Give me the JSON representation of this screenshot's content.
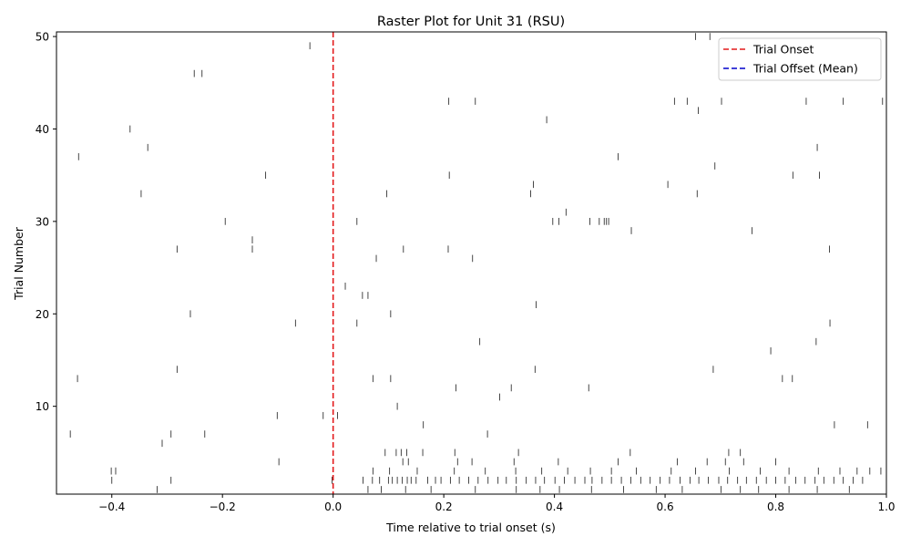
{
  "chart_data": {
    "type": "scatter",
    "title": "Raster Plot for Unit 31 (RSU)",
    "xlabel": "Time relative to trial onset (s)",
    "ylabel": "Trial Number",
    "xlim": [
      -0.5,
      1.0
    ],
    "ylim": [
      0.5,
      50.5
    ],
    "xticks": [
      {
        "value": -0.4,
        "label": "−0.4"
      },
      {
        "value": -0.2,
        "label": "−0.2"
      },
      {
        "value": 0.0,
        "label": "0.0"
      },
      {
        "value": 0.2,
        "label": "0.2"
      },
      {
        "value": 0.4,
        "label": "0.4"
      },
      {
        "value": 0.6,
        "label": "0.6"
      },
      {
        "value": 0.8,
        "label": "0.8"
      },
      {
        "value": 1.0,
        "label": "1.0"
      }
    ],
    "yticks": [
      {
        "value": 10,
        "label": "10"
      },
      {
        "value": 20,
        "label": "20"
      },
      {
        "value": 30,
        "label": "30"
      },
      {
        "value": 40,
        "label": "40"
      },
      {
        "value": 50,
        "label": "50"
      }
    ],
    "grid": false,
    "legend_position": "top-right",
    "legend": [
      {
        "label": "Trial Onset",
        "color": "#e31a1c",
        "style": "dashed"
      },
      {
        "label": "Trial Offset (Mean)",
        "color": "#0000cc",
        "style": "dashed"
      }
    ],
    "reference_lines": [
      {
        "name": "Trial Onset",
        "x": 0.0,
        "color": "#e31a1c",
        "style": "dashed"
      }
    ],
    "spike_color": "#333333",
    "spikes": [
      {
        "trial": 1,
        "times": [
          -0.318,
          0.063,
          0.087,
          0.131,
          0.177,
          0.257,
          0.331,
          0.374,
          0.409,
          0.467,
          0.525,
          0.584,
          0.631,
          0.701,
          0.736,
          0.769,
          0.824,
          0.875,
          0.933
        ]
      },
      {
        "trial": 2,
        "times": [
          -0.4,
          -0.293,
          -0.002,
          0.054,
          0.071,
          0.084,
          0.1,
          0.107,
          0.116,
          0.125,
          0.134,
          0.141,
          0.15,
          0.171,
          0.185,
          0.195,
          0.212,
          0.228,
          0.245,
          0.262,
          0.28,
          0.298,
          0.313,
          0.331,
          0.349,
          0.366,
          0.382,
          0.401,
          0.418,
          0.437,
          0.455,
          0.468,
          0.486,
          0.503,
          0.521,
          0.538,
          0.556,
          0.573,
          0.591,
          0.608,
          0.627,
          0.645,
          0.661,
          0.678,
          0.697,
          0.713,
          0.731,
          0.747,
          0.765,
          0.783,
          0.8,
          0.817,
          0.836,
          0.853,
          0.871,
          0.887,
          0.905,
          0.922,
          0.94,
          0.957
        ]
      },
      {
        "trial": 3,
        "times": [
          -0.401,
          -0.393,
          0.072,
          0.102,
          0.152,
          0.219,
          0.275,
          0.33,
          0.377,
          0.424,
          0.465,
          0.503,
          0.548,
          0.611,
          0.655,
          0.716,
          0.772,
          0.824,
          0.877,
          0.916,
          0.947,
          0.97,
          0.99
        ]
      },
      {
        "trial": 4,
        "times": [
          -0.098,
          0.126,
          0.136,
          0.225,
          0.251,
          0.327,
          0.407,
          0.515,
          0.622,
          0.676,
          0.709,
          0.742,
          0.8
        ]
      },
      {
        "trial": 5,
        "times": [
          0.094,
          0.114,
          0.123,
          0.133,
          0.162,
          0.22,
          0.335,
          0.537,
          0.715,
          0.736
        ]
      },
      {
        "trial": 6,
        "times": [
          -0.309
        ]
      },
      {
        "trial": 7,
        "times": [
          -0.475,
          -0.293,
          -0.232,
          0.279
        ]
      },
      {
        "trial": 8,
        "times": [
          0.163,
          0.906,
          0.966
        ]
      },
      {
        "trial": 9,
        "times": [
          -0.101,
          -0.018,
          0.008
        ]
      },
      {
        "trial": 10,
        "times": [
          0.116
        ]
      },
      {
        "trial": 11,
        "times": [
          0.301
        ]
      },
      {
        "trial": 12,
        "times": [
          0.222,
          0.322,
          0.462
        ]
      },
      {
        "trial": 13,
        "times": [
          -0.462,
          0.072,
          0.104,
          0.812,
          0.83
        ]
      },
      {
        "trial": 14,
        "times": [
          -0.282,
          0.365,
          0.687
        ]
      },
      {
        "trial": 16,
        "times": [
          0.791
        ]
      },
      {
        "trial": 17,
        "times": [
          0.265,
          0.873
        ]
      },
      {
        "trial": 19,
        "times": [
          -0.068,
          0.043,
          0.898
        ]
      },
      {
        "trial": 20,
        "times": [
          -0.258,
          0.104
        ]
      },
      {
        "trial": 21,
        "times": [
          0.367
        ]
      },
      {
        "trial": 22,
        "times": [
          0.053,
          0.063
        ]
      },
      {
        "trial": 23,
        "times": [
          0.022
        ]
      },
      {
        "trial": 26,
        "times": [
          0.078,
          0.252
        ]
      },
      {
        "trial": 27,
        "times": [
          -0.282,
          -0.146,
          0.127,
          0.208,
          0.897
        ]
      },
      {
        "trial": 28,
        "times": [
          -0.146
        ]
      },
      {
        "trial": 29,
        "times": [
          0.539,
          0.757
        ]
      },
      {
        "trial": 30,
        "times": [
          -0.195,
          0.043,
          0.397,
          0.408,
          0.464,
          0.481,
          0.49,
          0.494,
          0.498
        ]
      },
      {
        "trial": 31,
        "times": [
          0.421
        ]
      },
      {
        "trial": 33,
        "times": [
          -0.347,
          0.097,
          0.357,
          0.658
        ]
      },
      {
        "trial": 34,
        "times": [
          0.362,
          0.605
        ]
      },
      {
        "trial": 35,
        "times": [
          -0.122,
          0.21,
          0.831,
          0.879
        ]
      },
      {
        "trial": 36,
        "times": [
          0.69
        ]
      },
      {
        "trial": 37,
        "times": [
          -0.46,
          0.515
        ]
      },
      {
        "trial": 38,
        "times": [
          -0.335,
          0.875
        ]
      },
      {
        "trial": 40,
        "times": [
          -0.367
        ]
      },
      {
        "trial": 41,
        "times": [
          0.386
        ]
      },
      {
        "trial": 42,
        "times": [
          0.66
        ]
      },
      {
        "trial": 43,
        "times": [
          0.209,
          0.257,
          0.617,
          0.64,
          0.702,
          0.855,
          0.922,
          0.993
        ]
      },
      {
        "trial": 46,
        "times": [
          -0.251,
          -0.237
        ]
      },
      {
        "trial": 49,
        "times": [
          -0.042
        ]
      },
      {
        "trial": 50,
        "times": [
          0.655,
          0.681
        ]
      }
    ]
  }
}
